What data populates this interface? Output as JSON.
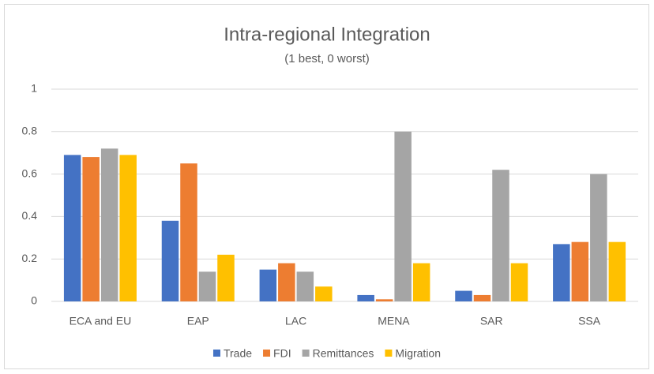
{
  "chart_data": {
    "type": "bar",
    "title": "Intra-regional Integration",
    "subtitle": "(1 best, 0 worst)",
    "categories": [
      "ECA and EU",
      "EAP",
      "LAC",
      "MENA",
      "SAR",
      "SSA"
    ],
    "series": [
      {
        "name": "Trade",
        "color": "#4472c4",
        "values": [
          0.69,
          0.38,
          0.15,
          0.03,
          0.05,
          0.27
        ]
      },
      {
        "name": "FDI",
        "color": "#ed7d31",
        "values": [
          0.68,
          0.65,
          0.18,
          0.01,
          0.03,
          0.28
        ]
      },
      {
        "name": "Remittances",
        "color": "#a5a5a5",
        "values": [
          0.72,
          0.14,
          0.14,
          0.8,
          0.62,
          0.6
        ]
      },
      {
        "name": "Migration",
        "color": "#ffc000",
        "values": [
          0.69,
          0.22,
          0.07,
          0.18,
          0.18,
          0.28
        ]
      }
    ],
    "ylim": [
      0,
      1
    ],
    "yticks": [
      0,
      0.2,
      0.4,
      0.6,
      0.8,
      1
    ],
    "grid": true,
    "legend": "bottom"
  }
}
